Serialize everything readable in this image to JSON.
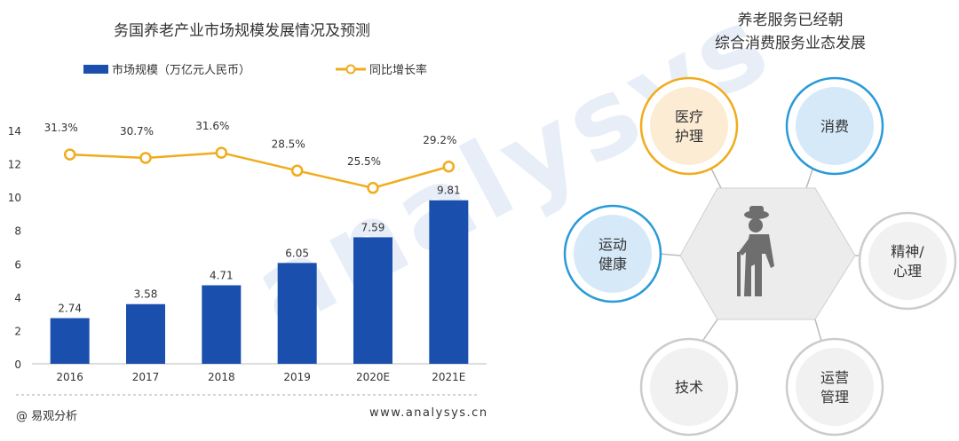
{
  "left": {
    "title": "务国养老产业市场规模发展情况及预测",
    "legend": {
      "bar_label": "市场规模（万亿元人民币）",
      "line_label": "同比增长率"
    },
    "footer_source": "@ 易观分析",
    "footer_url": "www.analysys.cn"
  },
  "colors": {
    "bar": "#1a4fae",
    "line": "#f0ac1c",
    "axis": "#999999"
  },
  "chart_data": {
    "type": "bar",
    "categories": [
      "2016",
      "2017",
      "2018",
      "2019",
      "2020E",
      "2021E"
    ],
    "series": [
      {
        "name": "市场规模（万亿元人民币）",
        "type": "bar",
        "values": [
          2.74,
          3.58,
          4.71,
          6.05,
          7.59,
          9.81
        ],
        "labels": [
          "2.74",
          "3.58",
          "4.71",
          "6.05",
          "7.59",
          "9.81"
        ]
      },
      {
        "name": "同比增长率",
        "type": "line",
        "values": [
          31.3,
          30.7,
          31.6,
          28.5,
          25.5,
          29.2
        ],
        "labels": [
          "31.3%",
          "30.7%",
          "31.6%",
          "28.5%",
          "25.5%",
          "29.2%"
        ]
      }
    ],
    "ylim": [
      0,
      14
    ],
    "yticks": [
      0,
      2,
      4,
      6,
      8,
      10,
      12,
      14
    ],
    "title": "务国养老产业市场规模发展情况及预测",
    "xlabel": "",
    "ylabel": ""
  },
  "right": {
    "title_line1": "养老服务已经朝",
    "title_line2": "综合消费服务业态发展",
    "nodes": [
      {
        "name": "medical-node",
        "lines": [
          "医疗",
          "护理"
        ],
        "fill": "#fcecd4",
        "ring": "#f0ac1c"
      },
      {
        "name": "consumption-node",
        "lines": [
          "消费"
        ],
        "fill": "#d6e9f8",
        "ring": "#2a9ad8"
      },
      {
        "name": "sports-node",
        "lines": [
          "运动",
          "健康"
        ],
        "fill": "#d6e9f8",
        "ring": "#2a9ad8"
      },
      {
        "name": "mental-node",
        "lines": [
          "精神/",
          "心理"
        ],
        "fill": "#f1f1f1",
        "ring": "#cccccc"
      },
      {
        "name": "tech-node",
        "lines": [
          "技术"
        ],
        "fill": "#f1f1f1",
        "ring": "#cccccc"
      },
      {
        "name": "operation-node",
        "lines": [
          "运营",
          "管理"
        ],
        "fill": "#f1f1f1",
        "ring": "#cccccc"
      }
    ],
    "center_icon": "elderly-person-with-cane-icon"
  }
}
